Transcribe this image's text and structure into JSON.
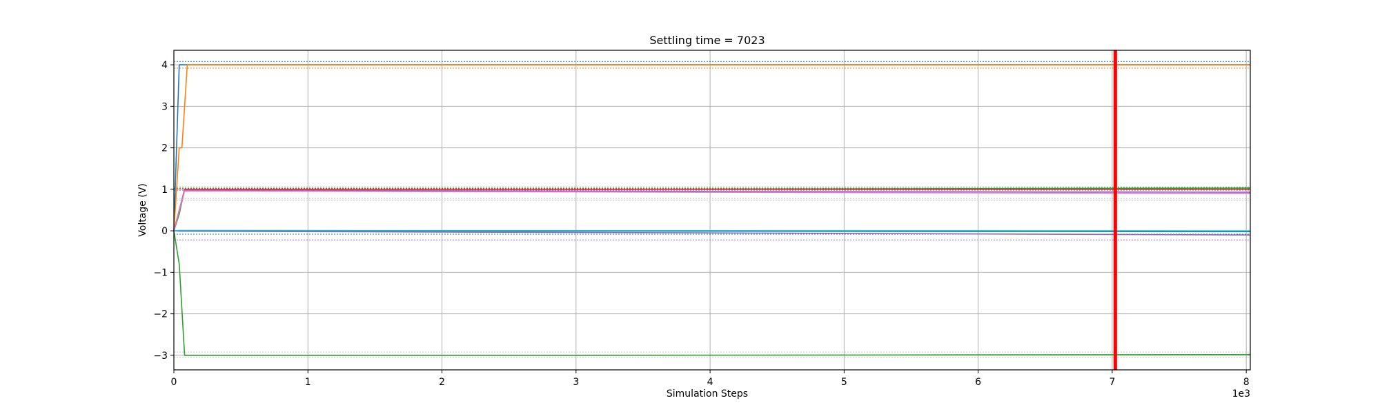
{
  "chart_data": {
    "type": "line",
    "title": "Settling time = 7023",
    "xlabel": "Simulation Steps",
    "ylabel": "Voltage (V)",
    "x_offset_label": "1e3",
    "xlim": [
      0,
      8030
    ],
    "ylim": [
      -3.35,
      4.35
    ],
    "xticks": [
      0,
      1000,
      2000,
      3000,
      4000,
      5000,
      6000,
      7000,
      8000
    ],
    "xtick_labels": [
      "0",
      "1",
      "2",
      "3",
      "4",
      "5",
      "6",
      "7",
      "8"
    ],
    "yticks": [
      -3,
      -2,
      -1,
      0,
      1,
      2,
      3,
      4
    ],
    "ytick_labels": [
      "−3",
      "−2",
      "−1",
      "0",
      "1",
      "2",
      "3",
      "4"
    ],
    "grid": true,
    "settling_time_marker": {
      "x": 7023,
      "color": "#ff0000"
    },
    "tolerance_bands": [
      {
        "y": 4.08,
        "color": "#1f77b4"
      },
      {
        "y": 3.92,
        "color": "#ff7f0e"
      },
      {
        "y": 1.05,
        "color": "#2ca02c"
      },
      {
        "y": 1.02,
        "color": "#d62728"
      },
      {
        "y": 0.98,
        "color": "#9467bd"
      },
      {
        "y": 0.78,
        "color": "#c7c7c7"
      },
      {
        "y": 0.74,
        "color": "#c7c7c7"
      },
      {
        "y": -0.08,
        "color": "#1f77b4"
      },
      {
        "y": -0.22,
        "color": "#9467bd"
      },
      {
        "y": -2.92,
        "color": "#c7c7c7"
      },
      {
        "y": -3.05,
        "color": "#c7c7c7"
      }
    ],
    "series": [
      {
        "color": "#1f77b4",
        "x": [
          0,
          40,
          80,
          8030
        ],
        "y": [
          0,
          4,
          4,
          4
        ]
      },
      {
        "color": "#ff7f0e",
        "x": [
          0,
          40,
          60,
          100,
          8030
        ],
        "y": [
          0,
          2,
          2,
          4,
          4
        ]
      },
      {
        "color": "#2ca02c",
        "x": [
          0,
          40,
          80,
          3000,
          8030
        ],
        "y": [
          0,
          0.4,
          1.0,
          1.0,
          1.03
        ]
      },
      {
        "color": "#2ca02c",
        "x": [
          0,
          40,
          80,
          3000,
          8030
        ],
        "y": [
          0,
          -0.8,
          -3.0,
          -3.0,
          -2.98
        ]
      },
      {
        "color": "#d62728",
        "x": [
          0,
          80,
          8030
        ],
        "y": [
          0,
          1.0,
          1.0
        ]
      },
      {
        "color": "#9467bd",
        "x": [
          0,
          80,
          4000,
          8030
        ],
        "y": [
          0,
          0.98,
          0.95,
          0.93
        ]
      },
      {
        "color": "#e377c2",
        "x": [
          0,
          80,
          4000,
          8030
        ],
        "y": [
          0,
          0.96,
          0.93,
          0.9
        ]
      },
      {
        "color": "#1f77b4",
        "x": [
          0,
          40,
          8030
        ],
        "y": [
          0,
          0,
          -0.02
        ]
      },
      {
        "color": "#9467bd",
        "x": [
          0,
          40,
          4000,
          8030
        ],
        "y": [
          0,
          -0.01,
          -0.05,
          -0.1
        ]
      },
      {
        "color": "#17becf",
        "x": [
          0,
          40,
          8030
        ],
        "y": [
          0,
          0.01,
          0.0
        ]
      }
    ]
  }
}
